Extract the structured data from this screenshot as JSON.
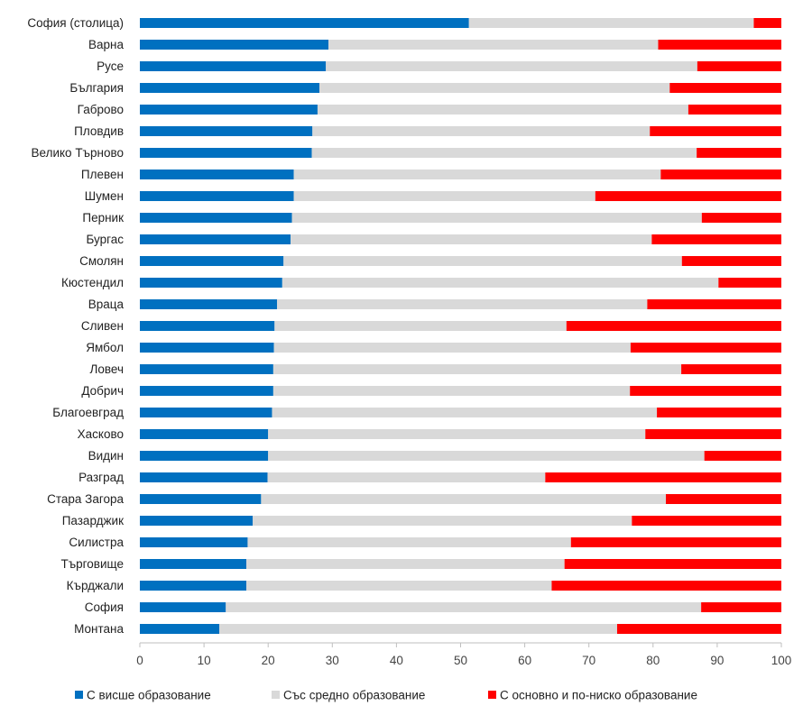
{
  "chart_data": {
    "type": "bar",
    "orientation": "horizontal",
    "stacked": true,
    "categories": [
      "София (столица)",
      "Варна",
      "Русе",
      "България",
      "Габрово",
      "Пловдив",
      "Велико Търново",
      "Плевен",
      "Шумен",
      "Перник",
      "Бургас",
      "Смолян",
      "Кюстендил",
      "Враца",
      "Сливен",
      "Ямбол",
      "Ловеч",
      "Добрич",
      "Благоевград",
      "Хасково",
      "Видин",
      "Разград",
      "Стара Загора",
      "Пазарджик",
      "Силистра",
      "Търговище",
      "Кърджали",
      "София",
      "Монтана"
    ],
    "series": [
      {
        "name": "С висше образование",
        "color": "#0070c0",
        "values": [
          51.3,
          29.4,
          29.0,
          28.0,
          27.7,
          26.9,
          26.8,
          24.0,
          24.0,
          23.7,
          23.5,
          22.4,
          22.2,
          21.4,
          21.0,
          20.9,
          20.8,
          20.8,
          20.6,
          20.0,
          20.0,
          19.9,
          18.9,
          17.6,
          16.8,
          16.6,
          16.6,
          13.4,
          12.4
        ]
      },
      {
        "name": "Със средно образование",
        "color": "#d9d9d9",
        "values": [
          44.4,
          51.4,
          57.9,
          54.6,
          57.8,
          52.6,
          60.0,
          57.2,
          47.0,
          63.9,
          56.3,
          62.1,
          68.0,
          57.7,
          45.5,
          55.6,
          63.6,
          55.6,
          60.0,
          58.8,
          68.0,
          43.3,
          63.1,
          59.1,
          50.4,
          49.6,
          47.6,
          74.1,
          62.0
        ]
      },
      {
        "name": "С основно и по-ниско образование",
        "color": "#ff0000",
        "values": [
          4.3,
          19.2,
          13.1,
          17.4,
          14.5,
          20.5,
          13.2,
          18.8,
          29.0,
          12.4,
          20.2,
          15.5,
          9.8,
          20.9,
          33.5,
          23.5,
          15.6,
          23.6,
          19.4,
          21.2,
          12.0,
          36.8,
          18.0,
          23.3,
          32.8,
          33.8,
          35.8,
          12.5,
          25.6
        ]
      }
    ],
    "xlim": [
      0,
      100
    ],
    "xticks": [
      0,
      10,
      20,
      30,
      40,
      50,
      60,
      70,
      80,
      90,
      100
    ],
    "grid": false,
    "legend_position": "bottom"
  }
}
